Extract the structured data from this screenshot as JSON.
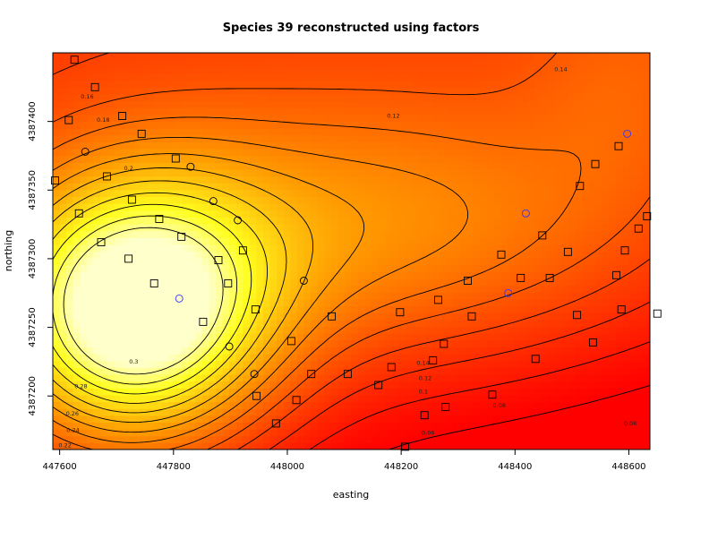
{
  "chart_data": {
    "type": "heatmap",
    "title": "Species 39 reconstructed using factors",
    "xlabel": "easting",
    "ylabel": "northing",
    "xlim": [
      447588,
      448637
    ],
    "ylim": [
      4387161,
      4387450
    ],
    "x_ticks": [
      "447600",
      "447800",
      "448000",
      "448200",
      "448400",
      "448600"
    ],
    "x_tick_values": [
      447600,
      447800,
      448000,
      448200,
      448400,
      448600
    ],
    "y_ticks": [
      "4387200",
      "4387250",
      "4387300",
      "4387350",
      "4387400"
    ],
    "y_tick_values": [
      4387200,
      4387250,
      4387300,
      4387350,
      4387400
    ],
    "color_scale": {
      "low": "#ff0000",
      "mid": "#ff9900",
      "high": "#ffffcc"
    },
    "value_range": [
      0.04,
      0.32
    ],
    "contour_levels": [
      0.04,
      0.06,
      0.08,
      0.1,
      0.12,
      0.14,
      0.16,
      0.18,
      0.2,
      0.22,
      0.24,
      0.26,
      0.28,
      0.3
    ],
    "contour_labels": [
      {
        "text": "0.16",
        "x": 447637,
        "y": 4387418
      },
      {
        "text": "0.18",
        "x": 447665,
        "y": 4387401
      },
      {
        "text": "0.2",
        "x": 447713,
        "y": 4387366
      },
      {
        "text": "0.3",
        "x": 447722,
        "y": 4387225
      },
      {
        "text": "0.28",
        "x": 447626,
        "y": 4387207
      },
      {
        "text": "0.26",
        "x": 447611,
        "y": 4387187
      },
      {
        "text": "0.24",
        "x": 447612,
        "y": 4387175
      },
      {
        "text": "0.22",
        "x": 447598,
        "y": 4387164
      },
      {
        "text": "0.14",
        "x": 448469,
        "y": 4387438
      },
      {
        "text": "0.12",
        "x": 448175,
        "y": 4387404
      },
      {
        "text": "0.14",
        "x": 448227,
        "y": 4387224
      },
      {
        "text": "0.12",
        "x": 448231,
        "y": 4387213
      },
      {
        "text": "0.1",
        "x": 448231,
        "y": 4387203
      },
      {
        "text": "0.08",
        "x": 448361,
        "y": 4387193
      },
      {
        "text": "0.08",
        "x": 448591,
        "y": 4387180
      },
      {
        "text": "0.06",
        "x": 448236,
        "y": 4387173
      },
      {
        "text": "0.06",
        "x": 448640,
        "y": 4387180
      }
    ],
    "series": [
      {
        "name": "",
        "marker": "square",
        "color": "#000000",
        "points": [
          [
            447626,
            4387445
          ],
          [
            447662,
            4387425
          ],
          [
            447616,
            4387401
          ],
          [
            447710,
            4387404
          ],
          [
            447744,
            4387391
          ],
          [
            447804,
            4387373
          ],
          [
            447683,
            4387360
          ],
          [
            447592,
            4387357
          ],
          [
            447634,
            4387333
          ],
          [
            447727,
            4387343
          ],
          [
            447775,
            4387329
          ],
          [
            447673,
            4387312
          ],
          [
            447814,
            4387316
          ],
          [
            447721,
            4387300
          ],
          [
            447766,
            4387282
          ],
          [
            447879,
            4387299
          ],
          [
            447922,
            4387306
          ],
          [
            447896,
            4387282
          ],
          [
            447852,
            4387254
          ],
          [
            447944,
            4387263
          ],
          [
            448007,
            4387240
          ],
          [
            448078,
            4387258
          ],
          [
            448198,
            4387261
          ],
          [
            448265,
            4387270
          ],
          [
            448317,
            4387284
          ],
          [
            448376,
            4387303
          ],
          [
            448448,
            4387317
          ],
          [
            448514,
            4387353
          ],
          [
            448541,
            4387369
          ],
          [
            448582,
            4387382
          ],
          [
            448632,
            4387331
          ],
          [
            448617,
            4387322
          ],
          [
            448593,
            4387306
          ],
          [
            448578,
            4387288
          ],
          [
            448493,
            4387305
          ],
          [
            448461,
            4387286
          ],
          [
            448410,
            4387286
          ],
          [
            448324,
            4387258
          ],
          [
            448275,
            4387238
          ],
          [
            448256,
            4387226
          ],
          [
            448183,
            4387221
          ],
          [
            448160,
            4387208
          ],
          [
            448106,
            4387216
          ],
          [
            448042,
            4387216
          ],
          [
            447946,
            4387200
          ],
          [
            448016,
            4387197
          ],
          [
            448241,
            4387186
          ],
          [
            448278,
            4387192
          ],
          [
            448360,
            4387201
          ],
          [
            448436,
            4387227
          ],
          [
            448537,
            4387239
          ],
          [
            448509,
            4387259
          ],
          [
            448587,
            4387263
          ],
          [
            448650,
            4387260
          ],
          [
            447980,
            4387180
          ],
          [
            448207,
            4387163
          ]
        ]
      },
      {
        "name": "",
        "marker": "circle",
        "color": "#000000",
        "points": [
          [
            447645,
            4387378
          ],
          [
            447830,
            4387367
          ],
          [
            447870,
            4387342
          ],
          [
            447913,
            4387328
          ],
          [
            448029,
            4387284
          ],
          [
            447898,
            4387236
          ],
          [
            447942,
            4387216
          ]
        ]
      },
      {
        "name": "",
        "marker": "circle",
        "color": "#3333ff",
        "points": [
          [
            447810,
            4387271
          ],
          [
            448419,
            4387333
          ],
          [
            448388,
            4387275
          ],
          [
            448597,
            4387391
          ]
        ]
      }
    ]
  }
}
